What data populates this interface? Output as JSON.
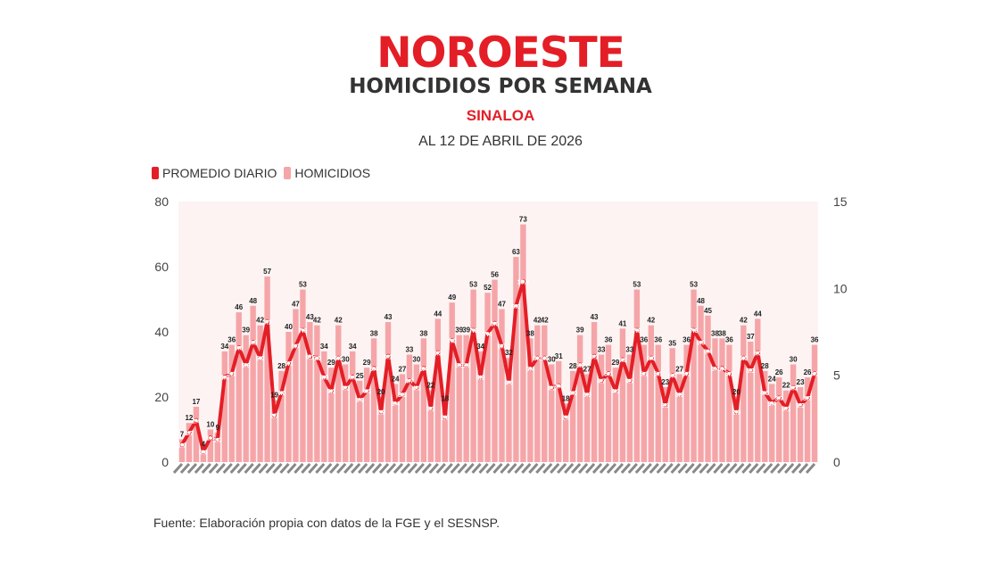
{
  "header": {
    "logo_text": "NOROESTE",
    "title": "HOMICIDIOS POR SEMANA",
    "subtitle": "SINALOA",
    "date": "AL 12 DE ABRIL DE 2026"
  },
  "colors": {
    "line": "#e41e26",
    "bar": "#f5a5a8",
    "bg": "#fdf3f3"
  },
  "source": "Fuente: Elaboración propia con datos de la FGE y el SESNSP.",
  "chart_data": {
    "type": "bar",
    "legend": [
      "PROMEDIO DIARIO",
      "HOMICIDIOS"
    ],
    "legend_position": "top-left",
    "grid": false,
    "ylim_left": [
      0,
      80
    ],
    "ylim_right": [
      0,
      15
    ],
    "yticks_left": [
      0,
      20,
      40,
      60,
      80
    ],
    "yticks_right": [
      0,
      5,
      10,
      15
    ],
    "series": [
      {
        "name": "HOMICIDIOS",
        "kind": "bar",
        "axis": "left",
        "values": [
          7,
          12,
          17,
          4,
          10,
          9,
          34,
          36,
          46,
          39,
          48,
          42,
          57,
          19,
          28,
          40,
          47,
          53,
          43,
          42,
          34,
          29,
          42,
          30,
          34,
          25,
          29,
          38,
          20,
          43,
          24,
          27,
          33,
          30,
          38,
          22,
          44,
          18,
          49,
          39,
          39,
          53,
          34,
          52,
          56,
          47,
          32,
          63,
          73,
          38,
          42,
          42,
          30,
          31,
          18,
          28,
          39,
          27,
          43,
          33,
          36,
          29,
          41,
          33,
          53,
          36,
          42,
          36,
          23,
          35,
          27,
          36,
          53,
          48,
          45,
          38,
          38,
          36,
          20,
          42,
          37,
          44,
          28,
          24,
          26,
          22,
          30,
          23,
          26,
          36
        ]
      },
      {
        "name": "PROMEDIO DIARIO",
        "kind": "line",
        "axis": "right",
        "values": [
          1.0,
          1.7,
          2.4,
          0.6,
          1.4,
          1.3,
          4.9,
          5.1,
          6.6,
          5.6,
          6.9,
          6.0,
          8.1,
          2.7,
          4.0,
          5.7,
          6.7,
          7.6,
          6.1,
          6.0,
          4.9,
          4.1,
          6.0,
          4.3,
          4.9,
          3.6,
          4.1,
          5.4,
          2.9,
          6.1,
          3.4,
          3.9,
          4.7,
          4.3,
          5.4,
          3.1,
          6.3,
          2.6,
          7.0,
          5.6,
          5.6,
          7.6,
          4.9,
          7.4,
          8.0,
          6.7,
          4.6,
          9.0,
          10.4,
          5.4,
          6.0,
          6.0,
          4.3,
          4.4,
          2.6,
          4.0,
          5.6,
          3.9,
          6.1,
          4.7,
          5.1,
          4.1,
          5.9,
          4.7,
          7.6,
          5.1,
          6.0,
          5.1,
          3.3,
          5.0,
          3.9,
          5.1,
          7.6,
          6.9,
          6.4,
          5.4,
          5.4,
          5.1,
          2.9,
          6.0,
          5.3,
          6.3,
          4.0,
          3.4,
          3.7,
          3.1,
          4.3,
          3.3,
          3.7,
          5.1
        ]
      }
    ]
  }
}
